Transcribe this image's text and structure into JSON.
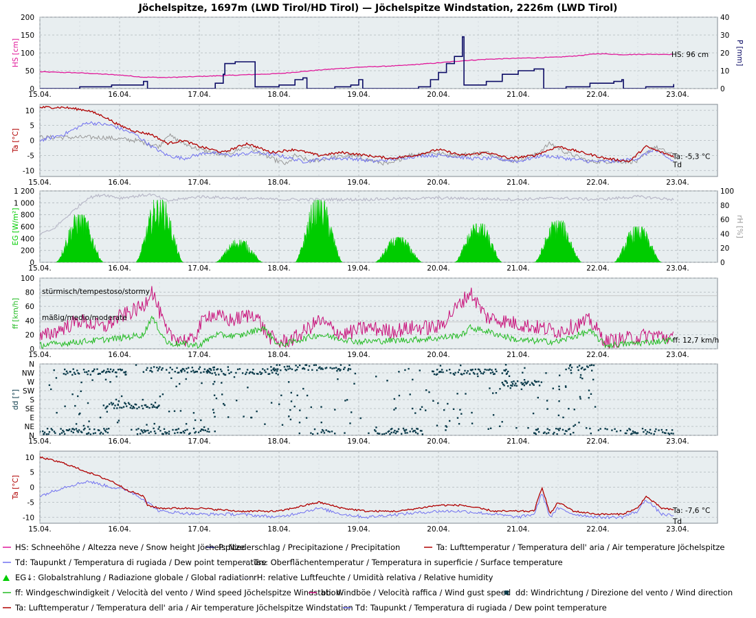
{
  "title": "Jöchelspitze, 1697m (LWD Tirol/HD Tirol) — Jöchelspitze Windstation, 2226m (LWD Tirol)",
  "colors": {
    "hs": "#e0199a",
    "p": "#0a0a64",
    "ta": "#b00000",
    "td": "#7070f0",
    "tss": "#999999",
    "eg": "#00cc00",
    "rh": "#b8b8c8",
    "ff": "#22bb22",
    "bb": "#c8107a",
    "dd": "#0a3a4a",
    "panel_bg": "#e8eef0",
    "grid": "#b0b8bc"
  },
  "chart_data": [
    {
      "type": "line",
      "name": "snow-precip",
      "x_ticks": [
        "15.04.",
        "16.04.",
        "17.04.",
        "18.04.",
        "19.04.",
        "20.04.",
        "21.04.",
        "22.04.",
        "23.04."
      ],
      "x_range": [
        0,
        8.5
      ],
      "left_axis": {
        "label": "HS [cm]",
        "range": [
          0,
          200
        ],
        "ticks": [
          "0",
          "50",
          "100",
          "150",
          "200"
        ]
      },
      "right_axis": {
        "label": "P [mm]",
        "range": [
          0,
          40
        ],
        "ticks": [
          "0",
          "10",
          "20",
          "30",
          "40"
        ]
      },
      "series": [
        {
          "key": "hs",
          "axis": "left",
          "x": [
            0,
            0.5,
            1,
            1.3,
            1.6,
            2.0,
            2.5,
            3.0,
            3.5,
            4.0,
            4.5,
            5.0,
            5.3,
            5.6,
            6.0,
            6.5,
            6.8,
            7.0,
            7.3,
            7.6,
            7.95
          ],
          "y": [
            47,
            44,
            38,
            32,
            31,
            34,
            38,
            42,
            52,
            60,
            64,
            72,
            78,
            82,
            85,
            88,
            93,
            98,
            95,
            96,
            96
          ]
        },
        {
          "key": "p",
          "axis": "right",
          "x": [
            0,
            0.3,
            0.5,
            0.9,
            1.3,
            1.35,
            1.9,
            2.2,
            2.3,
            2.32,
            2.45,
            2.7,
            3.0,
            3.2,
            3.3,
            3.35,
            3.5,
            3.7,
            3.9,
            4.0,
            4.05,
            4.3,
            4.6,
            4.75,
            4.9,
            5.0,
            5.1,
            5.2,
            5.3,
            5.32,
            5.4,
            5.6,
            5.8,
            6.0,
            6.1,
            6.2,
            6.3,
            6.32,
            6.6,
            6.9,
            7.2,
            7.3,
            7.32,
            7.6,
            7.95
          ],
          "y": [
            0,
            0,
            1,
            2,
            4,
            0,
            0,
            3,
            8,
            14,
            15,
            1,
            2,
            5,
            6,
            0,
            0,
            1,
            2,
            5,
            0,
            0,
            0,
            1,
            5,
            9,
            14,
            18,
            29,
            2,
            2,
            4,
            8,
            10,
            10,
            11,
            11,
            0,
            1,
            3,
            4,
            5,
            0,
            1,
            2.5
          ]
        }
      ],
      "annotation": "HS: 96 cm"
    },
    {
      "type": "line",
      "name": "temperature-1697",
      "x_ticks": [
        "15.04.",
        "16.04.",
        "17.04.",
        "18.04.",
        "19.04.",
        "20.04.",
        "21.04.",
        "22.04.",
        "23.04."
      ],
      "x_range": [
        0,
        8.5
      ],
      "left_axis": {
        "label": "Ta [°C]",
        "range": [
          -12,
          12
        ],
        "ticks": [
          "10",
          "5",
          "0",
          "-5",
          "-10"
        ],
        "tick_values": [
          10,
          5,
          0,
          -5,
          -10
        ]
      },
      "series": [
        {
          "key": "ta",
          "x": [
            0,
            0.3,
            0.6,
            0.8,
            1.0,
            1.2,
            1.4,
            1.6,
            1.8,
            2.0,
            2.3,
            2.6,
            2.9,
            3.2,
            3.5,
            3.8,
            4.1,
            4.4,
            4.7,
            5.0,
            5.3,
            5.6,
            5.9,
            6.2,
            6.5,
            6.8,
            7.1,
            7.4,
            7.6,
            7.8,
            7.95
          ],
          "y": [
            11,
            11,
            10,
            8,
            5,
            3,
            2,
            -1,
            0,
            -2,
            -4,
            -1,
            -4,
            -3,
            -5,
            -4,
            -5,
            -6,
            -5,
            -3,
            -5,
            -4,
            -6,
            -5,
            -2,
            -4,
            -6,
            -7,
            -2,
            -4,
            -5.3
          ]
        },
        {
          "key": "td",
          "x": [
            0,
            0.3,
            0.6,
            0.9,
            1.2,
            1.4,
            1.6,
            1.8,
            2.1,
            2.4,
            2.7,
            3.0,
            3.3,
            3.6,
            3.9,
            4.2,
            4.5,
            4.8,
            5.1,
            5.4,
            5.7,
            6.0,
            6.3,
            6.6,
            6.9,
            7.2,
            7.5,
            7.7,
            7.95
          ],
          "y": [
            0,
            2,
            6,
            5,
            2,
            -2,
            -5,
            -6,
            -4,
            -5,
            -4,
            -5,
            -7,
            -6,
            -6,
            -7,
            -6,
            -5,
            -5,
            -6,
            -6,
            -7,
            -5,
            -6,
            -7,
            -7,
            -6,
            -3,
            -7
          ]
        },
        {
          "key": "tss",
          "x": [
            0,
            0.4,
            0.8,
            1.2,
            1.5,
            1.6,
            1.8,
            2.0,
            2.3,
            2.6,
            2.9,
            3.1,
            3.2,
            3.4,
            3.6,
            3.9,
            4.2,
            4.4,
            4.6,
            4.9,
            5.2,
            5.6,
            5.9,
            6.2,
            6.4,
            6.6,
            6.9,
            7.2,
            7.5,
            7.7,
            7.95
          ],
          "y": [
            1,
            1,
            1,
            0,
            -2,
            2,
            -1,
            -3,
            -5,
            -2,
            -6,
            -8,
            -5,
            -7,
            -6,
            -5,
            -7,
            -8,
            -5,
            -4,
            -5,
            -4,
            -7,
            -5,
            -1,
            -4,
            -7,
            -7,
            -7,
            -2,
            -5
          ]
        }
      ],
      "annotation_ta": "Ta: -5,3 °C",
      "annotation_td": "Td"
    },
    {
      "type": "area",
      "name": "radiation-humidity",
      "x_ticks": [
        "15.04.",
        "16.04.",
        "17.04.",
        "18.04.",
        "19.04.",
        "20.04.",
        "21.04.",
        "22.04.",
        "23.04."
      ],
      "x_range": [
        0,
        8.5
      ],
      "left_axis": {
        "label": "EG [W/m²]",
        "range": [
          0,
          1200
        ],
        "ticks": [
          "0",
          "200",
          "400",
          "600",
          "800",
          "1 000",
          "1 200"
        ]
      },
      "right_axis": {
        "label": "rH [%]",
        "range": [
          0,
          100
        ],
        "ticks": [
          "0",
          "20",
          "40",
          "60",
          "80",
          "100"
        ]
      },
      "series": [
        {
          "key": "eg",
          "day_peaks": [
            800,
            1050,
            380,
            1050,
            420,
            650,
            700,
            600
          ]
        },
        {
          "key": "rh",
          "x": [
            0,
            0.15,
            0.4,
            0.6,
            0.8,
            1.0,
            1.4,
            1.6,
            2.0,
            2.4,
            3.0,
            4.0,
            5.0,
            6.0,
            6.5,
            7.0,
            7.5,
            7.95
          ],
          "y": [
            40,
            45,
            70,
            90,
            95,
            90,
            95,
            86,
            92,
            90,
            88,
            88,
            90,
            88,
            90,
            88,
            92,
            88
          ]
        }
      ]
    },
    {
      "type": "line",
      "name": "wind-speed",
      "x_ticks": [
        "15.04.",
        "16.04.",
        "17.04.",
        "18.04.",
        "19.04.",
        "20.04.",
        "21.04.",
        "22.04.",
        "23.04."
      ],
      "x_range": [
        0,
        8.5
      ],
      "left_axis": {
        "label": "ff [km/h]",
        "range": [
          0,
          100
        ],
        "ticks": [
          "0",
          "20",
          "40",
          "60",
          "80",
          "100"
        ]
      },
      "threshold_labels": [
        {
          "text": "stürmisch/tempestoso/stormy",
          "value": 75
        },
        {
          "text": "mäßig/medio/moderate",
          "value": 38
        }
      ],
      "series": [
        {
          "key": "bb",
          "x": [
            0,
            0.3,
            0.5,
            0.8,
            1.0,
            1.3,
            1.4,
            1.6,
            1.9,
            2.1,
            2.4,
            2.7,
            2.85,
            3.0,
            3.2,
            3.5,
            3.8,
            4.1,
            4.4,
            4.7,
            5.0,
            5.2,
            5.4,
            5.6,
            6.0,
            6.5,
            6.9,
            7.1,
            7.4,
            7.7,
            7.95
          ],
          "y": [
            15,
            30,
            40,
            30,
            45,
            60,
            85,
            20,
            10,
            50,
            40,
            50,
            20,
            8,
            15,
            40,
            20,
            30,
            25,
            30,
            30,
            55,
            80,
            45,
            35,
            25,
            40,
            10,
            15,
            20,
            15
          ]
        },
        {
          "key": "ff",
          "x": [
            0,
            0.5,
            1.0,
            1.3,
            1.4,
            1.6,
            2.0,
            2.2,
            2.5,
            2.8,
            3.0,
            3.5,
            4.0,
            4.5,
            5.0,
            5.3,
            5.4,
            5.6,
            6.0,
            6.5,
            6.9,
            7.1,
            7.5,
            7.95
          ],
          "y": [
            5,
            10,
            15,
            20,
            45,
            8,
            5,
            20,
            18,
            30,
            5,
            20,
            10,
            12,
            15,
            20,
            30,
            25,
            12,
            10,
            25,
            5,
            8,
            12.7
          ]
        }
      ],
      "annotation": "ff: 12,7 km/h"
    },
    {
      "type": "scatter",
      "name": "wind-direction",
      "x_ticks": [
        "15.04.",
        "16.04.",
        "17.04.",
        "18.04.",
        "19.04.",
        "20.04.",
        "21.04.",
        "22.04.",
        "23.04."
      ],
      "x_range": [
        0,
        8.5
      ],
      "left_axis": {
        "label": "dd [°]",
        "ticks": [
          "N",
          "NE",
          "E",
          "SE",
          "S",
          "SW",
          "W",
          "NW",
          "N"
        ],
        "tick_values": [
          0,
          45,
          90,
          135,
          180,
          225,
          270,
          315,
          360
        ]
      },
      "series": [
        {
          "key": "dd",
          "segments": [
            {
              "x0": 0.0,
              "x1": 0.9,
              "y": 20
            },
            {
              "x0": 0.3,
              "x1": 1.1,
              "y": 320
            },
            {
              "x0": 0.8,
              "x1": 1.5,
              "y": 150
            },
            {
              "x0": 1.2,
              "x1": 2.2,
              "y": 20
            },
            {
              "x0": 1.3,
              "x1": 2.2,
              "y": 330
            },
            {
              "x0": 2.1,
              "x1": 3.0,
              "y": 320
            },
            {
              "x0": 2.9,
              "x1": 3.9,
              "y": 340
            },
            {
              "x0": 3.4,
              "x1": 3.7,
              "y": 20
            },
            {
              "x0": 4.2,
              "x1": 4.8,
              "y": 20
            },
            {
              "x0": 4.9,
              "x1": 5.9,
              "y": 320
            },
            {
              "x0": 5.8,
              "x1": 6.3,
              "y": 260
            },
            {
              "x0": 6.2,
              "x1": 6.7,
              "y": 20
            },
            {
              "x0": 6.6,
              "x1": 6.95,
              "y": 340
            },
            {
              "x0": 6.9,
              "x1": 7.95,
              "y": 20
            }
          ]
        }
      ]
    },
    {
      "type": "line",
      "name": "temperature-2226",
      "x_ticks": [
        "15.04.",
        "16.04.",
        "17.04.",
        "18.04.",
        "19.04.",
        "20.04.",
        "21.04.",
        "22.04.",
        "23.04."
      ],
      "x_range": [
        0,
        8.5
      ],
      "left_axis": {
        "label": "Ta [°C]",
        "range": [
          -12,
          12
        ],
        "ticks": [
          "10",
          "5",
          "0",
          "-5",
          "-10"
        ],
        "tick_values": [
          10,
          5,
          0,
          -5,
          -10
        ]
      },
      "series": [
        {
          "key": "ta",
          "x": [
            0,
            0.3,
            0.5,
            0.7,
            0.9,
            1.1,
            1.3,
            1.35,
            1.5,
            2.0,
            2.5,
            3.0,
            3.5,
            3.8,
            4.1,
            4.5,
            5.0,
            5.3,
            5.7,
            6.0,
            6.2,
            6.3,
            6.4,
            6.5,
            6.7,
            7.0,
            7.3,
            7.5,
            7.6,
            7.8,
            7.95
          ],
          "y": [
            10,
            8,
            6,
            4,
            2,
            -1,
            -3,
            -6,
            -7,
            -7,
            -8,
            -8,
            -5,
            -7,
            -8,
            -8,
            -6,
            -6,
            -8,
            -8,
            -8,
            0,
            -9,
            -5,
            -8,
            -9,
            -9,
            -7,
            -3,
            -7,
            -7.6
          ]
        },
        {
          "key": "td",
          "x": [
            0,
            0.3,
            0.6,
            0.9,
            1.1,
            1.3,
            1.5,
            2.0,
            2.5,
            3.0,
            3.5,
            3.8,
            4.1,
            4.5,
            5.0,
            5.3,
            5.7,
            6.0,
            6.2,
            6.3,
            6.4,
            6.5,
            6.7,
            7.0,
            7.3,
            7.5,
            7.6,
            7.8,
            7.95
          ],
          "y": [
            -3,
            0,
            2,
            0,
            -1,
            -4,
            -8,
            -9,
            -9,
            -10,
            -7,
            -9,
            -10,
            -9,
            -8,
            -8,
            -9,
            -10,
            -9,
            -2,
            -10,
            -7,
            -9,
            -10,
            -10,
            -8,
            -4,
            -9,
            -9.5
          ]
        }
      ],
      "annotation_ta": "Ta: -7,6 °C",
      "annotation_td": "Td"
    }
  ],
  "legend": [
    [
      {
        "key": "hs",
        "text": "HS: Schneehöhe / Altezza neve / Snow height  Jöchelspitze",
        "icon": "line-icon"
      },
      {
        "key": "p",
        "text": "P: Niederschlag / Precipitazione / Precipitation",
        "icon": "line-icon"
      },
      {
        "key": "ta",
        "text": "Ta: Lufttemperatur / Temperatura dell' aria / Air temperature  Jöchelspitze",
        "icon": "line-icon"
      }
    ],
    [
      {
        "key": "td",
        "text": "Td: Taupunkt / Temperatura di rugiada / Dew point temperature",
        "icon": "line-icon"
      },
      {
        "key": "tss",
        "text": "Tss: Oberflächentemperatur / Temperatura in superficie / Surface temperature",
        "icon": "line-icon"
      }
    ],
    [
      {
        "key": "eg",
        "text": "EG↓: Globalstrahlung / Radiazione globale / Global radiation",
        "icon": "area-icon"
      },
      {
        "key": "rh",
        "text": "rH: relative Luftfeuchte / Umidità relativa / Relative humidity",
        "icon": "line-icon"
      }
    ],
    [
      {
        "key": "ff",
        "text": "ff: Windgeschwindigkeit / Velocità del vento / Wind speed  Jöchelspitze Windstation",
        "icon": "line-icon"
      },
      {
        "key": "bb",
        "text": "bb: Windböe / Velocità raffica / Wind gust speed",
        "icon": "line-icon"
      },
      {
        "key": "dd",
        "text": "dd: Windrichtung / Direzione del vento / Wind direction",
        "icon": "square-icon"
      }
    ],
    [
      {
        "key": "ta",
        "text": "Ta: Lufttemperatur / Temperatura dell' aria / Air temperature  Jöchelspitze Windstation",
        "icon": "line-icon"
      },
      {
        "key": "td",
        "text": "Td: Taupunkt / Temperatura di rugiada / Dew point temperature",
        "icon": "line-icon"
      }
    ]
  ]
}
